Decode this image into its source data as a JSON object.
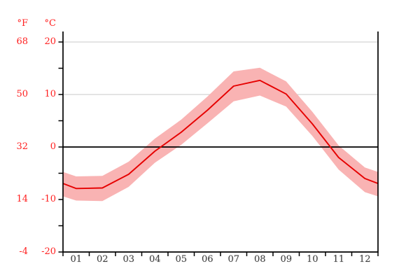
{
  "chart_data": {
    "type": "line",
    "title": "",
    "x_categories": [
      "01",
      "02",
      "03",
      "04",
      "05",
      "06",
      "07",
      "08",
      "09",
      "10",
      "11",
      "12"
    ],
    "unit_labels": {
      "fahrenheit": "°F",
      "celsius": "°C"
    },
    "y_axis": {
      "fahrenheit_tick_labels": [
        "68",
        "50",
        "32",
        "14",
        "-4"
      ],
      "celsius_tick_labels": [
        "20",
        "10",
        "0",
        "-10",
        "-20"
      ],
      "major_ticks_c": [
        20,
        10,
        0,
        -10,
        -20
      ],
      "minor_ticks_c": [
        15,
        5,
        -5,
        -15
      ],
      "ylim_c": [
        -22,
        22
      ],
      "gridlines_gray_at_c": [
        20,
        10
      ],
      "zero_line_c": 0,
      "grid_on": true
    },
    "series": [
      {
        "name": "mean-temperature-c",
        "values": [
          -7.9,
          -7.8,
          -5.2,
          -0.8,
          2.8,
          7.0,
          11.6,
          12.7,
          10.1,
          4.4,
          -2.0,
          -6.0
        ]
      },
      {
        "name": "max-band-c",
        "values": [
          -5.6,
          -5.5,
          -2.8,
          1.6,
          5.2,
          9.6,
          14.4,
          15.1,
          12.5,
          6.7,
          0.3,
          -3.9
        ]
      },
      {
        "name": "min-band-c",
        "values": [
          -10.2,
          -10.3,
          -7.6,
          -3.0,
          0.4,
          4.5,
          8.7,
          9.8,
          7.7,
          2.1,
          -4.3,
          -8.6
        ]
      }
    ],
    "wrap_edges_to_dec_jan_midpoint": true,
    "legend_position": "none",
    "colors": {
      "line": "#e60000",
      "band": "#f9b3b3",
      "grid": "#c8c8c8",
      "axis": "#000000",
      "axis_label_red": "#ff2020",
      "month_label": "#3d3d3d"
    }
  }
}
